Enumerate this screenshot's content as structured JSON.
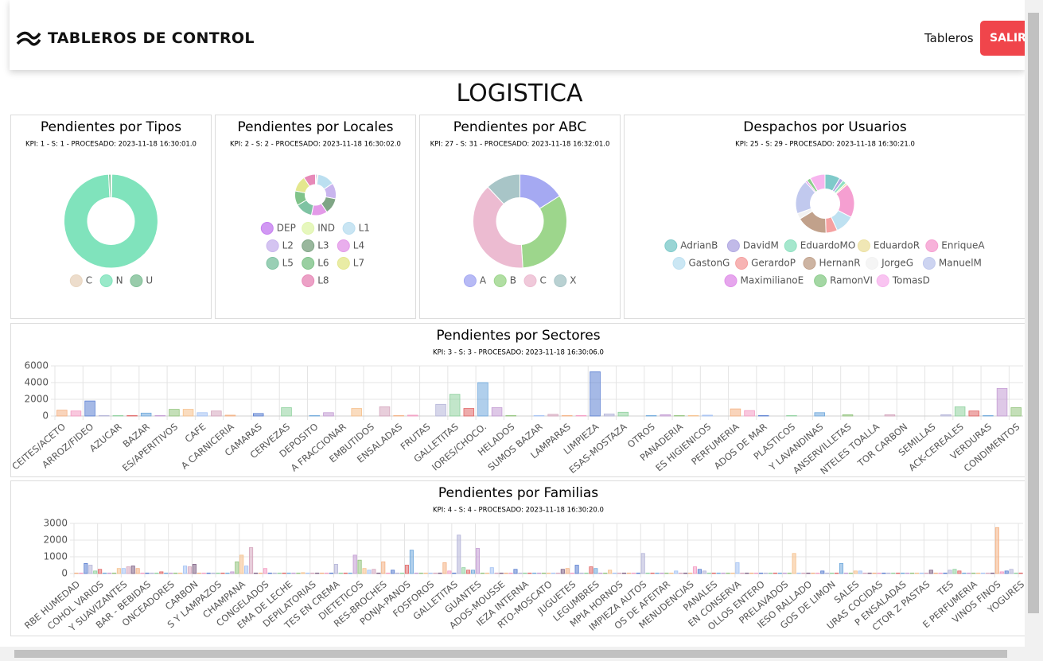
{
  "header": {
    "title": "TABLEROS DE CONTROL",
    "nav": "Tableros",
    "button": "SALIR"
  },
  "page_title": "LOGISTICA",
  "chart_data": [
    {
      "type": "pie",
      "title": "Pendientes por Tipos",
      "subtitle": "KPI: 1 - S: 1 - PROCESADO: 2023-11-18 16:30:01.0",
      "categories": [
        "C",
        "N",
        "U"
      ],
      "values": [
        0.3,
        98.9,
        0.8
      ],
      "colors": [
        "#e8d5bf",
        "#80e3bc",
        "#7fbf96"
      ]
    },
    {
      "type": "pie",
      "title": "Pendientes por Locales",
      "subtitle": "KPI: 2 - S: 2 - PROCESADO: 2023-11-18 16:30:02.0",
      "categories": [
        "DEP",
        "IND",
        "L1",
        "L2",
        "L3",
        "L4",
        "L5",
        "L6",
        "L7",
        "L8"
      ],
      "values": [
        1,
        1,
        13,
        12,
        12,
        12,
        13,
        11,
        12,
        9
      ],
      "colors": [
        "#c67ef0",
        "#e0f5ad",
        "#bbdff0",
        "#c9b5ee",
        "#7fa585",
        "#e39ae8",
        "#7fc3a3",
        "#80c38a",
        "#e4e78e",
        "#e789b8"
      ]
    },
    {
      "type": "pie",
      "title": "Pendientes por ABC",
      "subtitle": "KPI: 27 - S: 31 - PROCESADO: 2023-11-18 16:32:01.0",
      "categories": [
        "A",
        "B",
        "C",
        "X"
      ],
      "values": [
        16,
        33,
        39,
        12
      ],
      "colors": [
        "#a5a9f2",
        "#9dd68c",
        "#ecbbd1",
        "#a8c5c7"
      ]
    },
    {
      "type": "pie",
      "title": "Despachos por Usuarios",
      "subtitle": "KPI: 25 - S: 29 - PROCESADO: 2023-11-18 16:30:21.0",
      "categories": [
        "AdrianB",
        "DavidM",
        "EduardoMO",
        "EduardoR",
        "EnriqueA",
        "GastonG",
        "GerardoP",
        "HernanR",
        "JorgeG",
        "ManuelM",
        "MaximilianoE",
        "RamonVI",
        "TomasD"
      ],
      "values": [
        8,
        2,
        2,
        1,
        18,
        10,
        6,
        16,
        3,
        18,
        1,
        2,
        8
      ],
      "colors": [
        "#7fcaca",
        "#b1a9e2",
        "#8fe1c1",
        "#ece1a2",
        "#f59fd1",
        "#bee1f1",
        "#f5a1a1",
        "#c1a18b",
        "#f2f2f2",
        "#c1c9ee",
        "#e090e9",
        "#8dcd8d",
        "#f7b5ee"
      ]
    },
    {
      "type": "bar",
      "title": "Pendientes por Sectores",
      "subtitle": "KPI: 3 - S: 3 - PROCESADO: 2023-11-18 16:30:06.0",
      "categories": [
        "CEITES/ACETO",
        null,
        "ARROZ/FIDEO",
        null,
        "AZUCAR",
        null,
        "BAZAR",
        null,
        "ES/APERITIVOS",
        null,
        "CAFE",
        null,
        "A CARNICERIA",
        null,
        "CAMARAS",
        null,
        "CERVEZAS",
        null,
        "DEPOSITO",
        null,
        "A FRACCIONAR",
        null,
        "EMBUTIDOS",
        null,
        "ENSALADAS",
        null,
        "FRUTAS",
        null,
        "GALLETITAS",
        null,
        "IORES/CHOCO.",
        null,
        "HELADOS",
        null,
        "SUMOS BAZAR",
        null,
        "LAMPARAS",
        null,
        "LIMPIEZA",
        null,
        "ESAS-MOSTAZA",
        null,
        "OTROS",
        null,
        "PANADERIA",
        null,
        "ES HIGIENICOS",
        null,
        "PERFUMERIA",
        null,
        "ADOS DE MAR",
        null,
        "PLASTICOS",
        null,
        "Y LAVANDINAS",
        null,
        "ANSERVILLETAS",
        null,
        "NTELES TOALLA",
        null,
        "TOR CARBON",
        null,
        "SEMILLAS",
        null,
        "ACK-CEREALES",
        null,
        "VERDURAS",
        null,
        "CONDIMENTOS"
      ],
      "values": [
        700,
        600,
        1800,
        50,
        50,
        50,
        350,
        50,
        800,
        800,
        400,
        600,
        100,
        0,
        300,
        0,
        1000,
        0,
        50,
        400,
        0,
        900,
        0,
        1100,
        50,
        100,
        0,
        1400,
        2600,
        900,
        4000,
        1000,
        50,
        0,
        50,
        200,
        50,
        50,
        5300,
        250,
        450,
        0,
        50,
        150,
        50,
        50,
        100,
        0,
        850,
        650,
        50,
        0,
        50,
        0,
        400,
        0,
        150,
        0,
        0,
        150,
        0,
        0,
        0,
        150,
        1100,
        600,
        50,
        3300,
        1000
      ],
      "colors": [
        "#f4b183",
        "#f49ac2",
        "#5b7fd1",
        "#b4b4d8",
        "#8fd19e",
        "#e06666",
        "#6fa8dc",
        "#c39bd3",
        "#93c47d",
        "#f6c08a",
        "#a4c2f4",
        "#d5a6bd"
      ],
      "ylim": [
        0,
        6000
      ],
      "yticks": [
        0,
        2000,
        4000,
        6000
      ],
      "grid": true
    },
    {
      "type": "bar",
      "title": "Pendientes por Familias",
      "subtitle": "KPI: 4 - S: 4 - PROCESADO: 2023-11-18 16:30:20.0",
      "categories": [
        "RBE HUMEDAD",
        null,
        null,
        null,
        null,
        "COHOL VARIOS",
        null,
        null,
        null,
        null,
        "Y SUAVIZANTES",
        null,
        null,
        null,
        null,
        "BAR - BEBIDAS",
        null,
        null,
        null,
        null,
        "ONCEADORES",
        null,
        null,
        null,
        null,
        "CARBON",
        null,
        null,
        null,
        null,
        "S Y LAMPAZOS",
        null,
        null,
        null,
        null,
        "CHAMPANA",
        null,
        null,
        null,
        null,
        "CONGELADOS",
        null,
        null,
        null,
        null,
        "EMA DE LECHE",
        null,
        null,
        null,
        null,
        "DEPILATORIAS",
        null,
        null,
        null,
        null,
        "TES EN CREMA",
        null,
        null,
        null,
        null,
        "DIETETICOS",
        null,
        null,
        null,
        null,
        "RES-BROCHES",
        null,
        null,
        null,
        null,
        "PONJA-PANOS",
        null,
        null,
        null,
        null,
        "FOSFOROS",
        null,
        null,
        null,
        null,
        "GALLETITAS",
        null,
        null,
        null,
        null,
        "GUANTES",
        null,
        null,
        null,
        null,
        "ADOS-MOUSSE",
        null,
        null,
        null,
        null,
        "IEZA INTERNA",
        null,
        null,
        null,
        null,
        "RTO-MOSCATO",
        null,
        null,
        null,
        null,
        "JUGUETES",
        null,
        null,
        null,
        null,
        "LEGUMBRES",
        null,
        null,
        null,
        null,
        "MPIA HORNOS",
        null,
        null,
        null,
        null,
        "IMPIEZA AUTOS",
        null,
        null,
        null,
        null,
        "OS DE AFEITAR",
        null,
        null,
        null,
        null,
        "MENUDENCIAS",
        null,
        null,
        null,
        null,
        "PANALES",
        null,
        null,
        null,
        null,
        "EN CONSERVA",
        null,
        null,
        null,
        null,
        "OLLOS ENTERO",
        null,
        null,
        null,
        null,
        "PRELAVADOS",
        null,
        null,
        null,
        null,
        "IESO RALLADO",
        null,
        null,
        null,
        null,
        "GOS DE LIMON",
        null,
        null,
        null,
        null,
        "SALES",
        null,
        null,
        null,
        null,
        "URAS COCIDAS",
        null,
        null,
        null,
        null,
        "P ENSALADAS",
        null,
        null,
        null,
        null,
        "CTOR Z PASTAS",
        null,
        null,
        null,
        null,
        "TES",
        null,
        null,
        null,
        null,
        "E PERFUMERIA",
        null,
        null,
        null,
        null,
        "VINOS FINOS",
        null,
        null,
        null,
        null,
        "YOGURES"
      ],
      "values": [
        30,
        30,
        600,
        500,
        150,
        250,
        30,
        30,
        30,
        300,
        300,
        400,
        450,
        300,
        30,
        30,
        30,
        30,
        100,
        30,
        30,
        30,
        30,
        450,
        400,
        550,
        30,
        30,
        30,
        30,
        30,
        30,
        30,
        100,
        700,
        1100,
        450,
        1550,
        30,
        30,
        300,
        30,
        30,
        30,
        30,
        30,
        30,
        30,
        50,
        30,
        30,
        30,
        30,
        30,
        30,
        550,
        30,
        30,
        30,
        1100,
        800,
        300,
        200,
        250,
        30,
        700,
        30,
        200,
        30,
        30,
        500,
        1400,
        30,
        30,
        30,
        30,
        30,
        30,
        650,
        150,
        30,
        2300,
        350,
        200,
        200,
        1500,
        30,
        30,
        350,
        30,
        30,
        30,
        30,
        250,
        30,
        30,
        30,
        30,
        30,
        30,
        30,
        30,
        30,
        250,
        300,
        30,
        500,
        30,
        30,
        400,
        300,
        30,
        30,
        200,
        30,
        30,
        30,
        30,
        30,
        30,
        1200,
        30,
        30,
        30,
        30,
        30,
        30,
        150,
        30,
        30,
        30,
        400,
        250,
        150,
        30,
        30,
        30,
        30,
        30,
        30,
        650,
        30,
        30,
        30,
        30,
        30,
        30,
        30,
        30,
        30,
        30,
        30,
        1200,
        30,
        30,
        30,
        30,
        30,
        150,
        30,
        30,
        30,
        600,
        30,
        30,
        150,
        150,
        30,
        30,
        30,
        30,
        30,
        30,
        30,
        30,
        30,
        30,
        30,
        30,
        30,
        30,
        200,
        30,
        30,
        30,
        200,
        250,
        150,
        30,
        30,
        30,
        30,
        30,
        30,
        30,
        2750,
        100,
        150,
        250,
        30,
        30
      ],
      "colors": [
        "#f4b183",
        "#f49ac2",
        "#5b7fd1",
        "#b4b4d8",
        "#8fd19e",
        "#e06666",
        "#6fa8dc",
        "#c39bd3",
        "#93c47d",
        "#f6c08a",
        "#a4c2f4",
        "#d5a6bd",
        "#7f6084"
      ],
      "ylim": [
        0,
        3000
      ],
      "yticks": [
        0,
        1000,
        2000,
        3000
      ],
      "grid": true
    }
  ]
}
